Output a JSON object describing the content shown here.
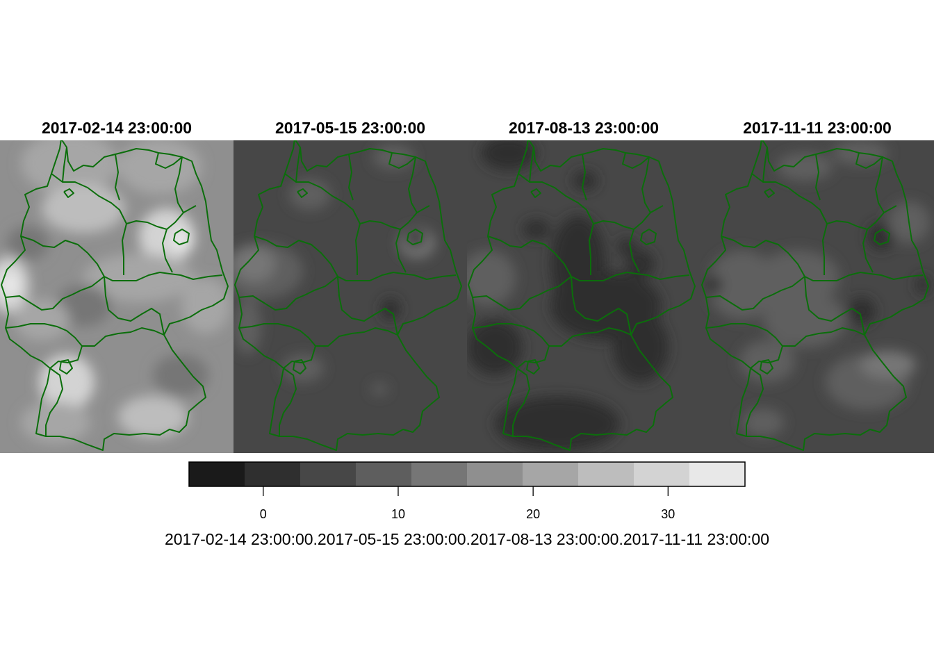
{
  "panels": [
    {
      "title": "2017-02-14 23:00:00",
      "background": "#8f8f8f",
      "theme": "winter"
    },
    {
      "title": "2017-05-15 23:00:00",
      "background": "#474747",
      "theme": "spring"
    },
    {
      "title": "2017-08-13 23:00:00",
      "background": "#474747",
      "theme": "summer"
    },
    {
      "title": "2017-11-11 23:00:00",
      "background": "#474747",
      "theme": "autumn"
    }
  ],
  "legend": {
    "breaks_colors": [
      "#1a1a1a",
      "#2f2f2f",
      "#474747",
      "#5e5e5e",
      "#767676",
      "#8f8f8f",
      "#a6a6a6",
      "#bdbdbd",
      "#d3d3d3",
      "#e8e8e8"
    ],
    "tick_values": [
      0,
      10,
      20,
      30
    ],
    "tick_labels": [
      "0",
      "10",
      "20",
      "30"
    ],
    "range": [
      -5.5,
      35.7
    ],
    "caption": "2017-02-14 23:00:00.2017-05-15 23:00:00.2017-08-13 23:00:00.2017-11-11 23:00:00"
  },
  "border_color": "#0b6e0b"
}
